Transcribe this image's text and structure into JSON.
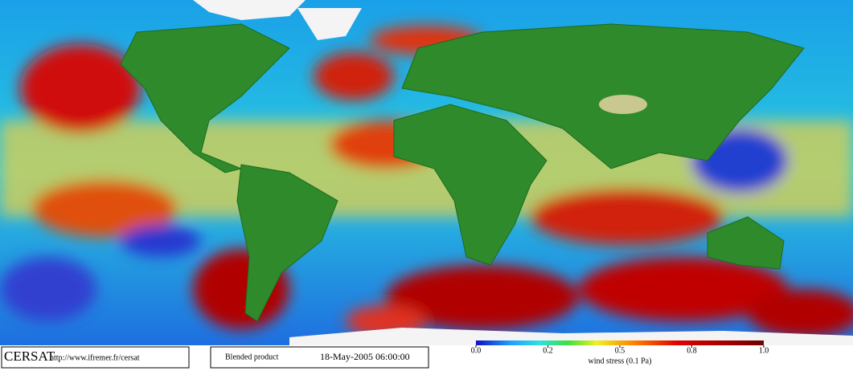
{
  "footer": {
    "logo": "CERSAT",
    "url": "http://www.ifremer.fr/cersat",
    "product": "Blended product",
    "timestamp": "18-May-2005 06:00:00"
  },
  "colorbar": {
    "ticks": [
      {
        "value": 0,
        "label": "0.0"
      },
      0.2,
      0.5,
      0.8,
      {
        "value": 1,
        "label": "1.0"
      }
    ],
    "label": "wind stress (0.1 Pa)"
  }
}
